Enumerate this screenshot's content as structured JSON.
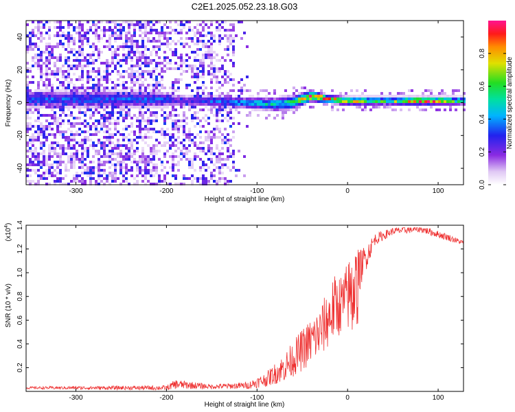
{
  "title": "C2E1.2025.052.23.18.G03",
  "chart_data": [
    {
      "type": "heatmap",
      "xlabel": "Height of straight line (km)",
      "ylabel": "Frequency (Hz)",
      "xlim": [
        -355,
        128
      ],
      "ylim": [
        -50,
        50
      ],
      "x_ticks": [
        -300,
        -200,
        -100,
        0,
        100
      ],
      "y_ticks": [
        -40,
        -20,
        0,
        20,
        40
      ],
      "colorbar": {
        "label": "Normalized spectral amplitude",
        "range": [
          0,
          1
        ],
        "ticks": [
          "0.0",
          "0.2",
          "0.4",
          "0.6",
          "0.8"
        ]
      },
      "ridge_profile": [
        {
          "x": -210,
          "center": 2,
          "width": 6,
          "peak": 0.35
        },
        {
          "x": -180,
          "center": 1,
          "width": 4,
          "peak": 0.25
        },
        {
          "x": -150,
          "center": 1,
          "width": 4,
          "peak": 0.35
        },
        {
          "x": -120,
          "center": 0,
          "width": 4,
          "peak": 0.45
        },
        {
          "x": -80,
          "center": -1,
          "width": 5,
          "peak": 0.5
        },
        {
          "x": -60,
          "center": 0,
          "width": 5,
          "peak": 0.6
        },
        {
          "x": -40,
          "center": 4,
          "width": 4,
          "peak": 0.9
        },
        {
          "x": -20,
          "center": 2,
          "width": 3,
          "peak": 0.85
        },
        {
          "x": 0,
          "center": 1,
          "width": 3,
          "peak": 0.8
        },
        {
          "x": 40,
          "center": 1,
          "width": 3,
          "peak": 0.6
        },
        {
          "x": 90,
          "center": 1,
          "width": 3,
          "peak": 0.95
        },
        {
          "x": 128,
          "center": 1,
          "width": 3,
          "peak": 0.55
        }
      ]
    },
    {
      "type": "line",
      "xlabel": "Height of straight line (km)",
      "ylabel": "SNR (10 * v/v)",
      "y_multiplier": "(x10",
      "y_multiplier_exp": "4",
      "xlim": [
        -355,
        128
      ],
      "ylim": [
        0,
        1.4
      ],
      "x_ticks": [
        -300,
        -200,
        -100,
        0,
        100
      ],
      "y_ticks": [
        0.2,
        0.4,
        0.6,
        0.8,
        1.0,
        1.2,
        1.4
      ],
      "series_color": "#ee3030",
      "envelope": {
        "x": [
          -355,
          -200,
          -190,
          -150,
          -110,
          -90,
          -70,
          -50,
          -30,
          -15,
          -5,
          5,
          15,
          30,
          50,
          80,
          110,
          128
        ],
        "mean": [
          0.03,
          0.03,
          0.06,
          0.04,
          0.05,
          0.1,
          0.2,
          0.35,
          0.5,
          0.7,
          0.75,
          0.85,
          1.05,
          1.28,
          1.35,
          1.37,
          1.3,
          1.25
        ],
        "amp": [
          0.01,
          0.02,
          0.04,
          0.02,
          0.03,
          0.06,
          0.12,
          0.18,
          0.22,
          0.28,
          0.25,
          0.35,
          0.15,
          0.05,
          0.03,
          0.03,
          0.03,
          0.02
        ]
      }
    }
  ]
}
